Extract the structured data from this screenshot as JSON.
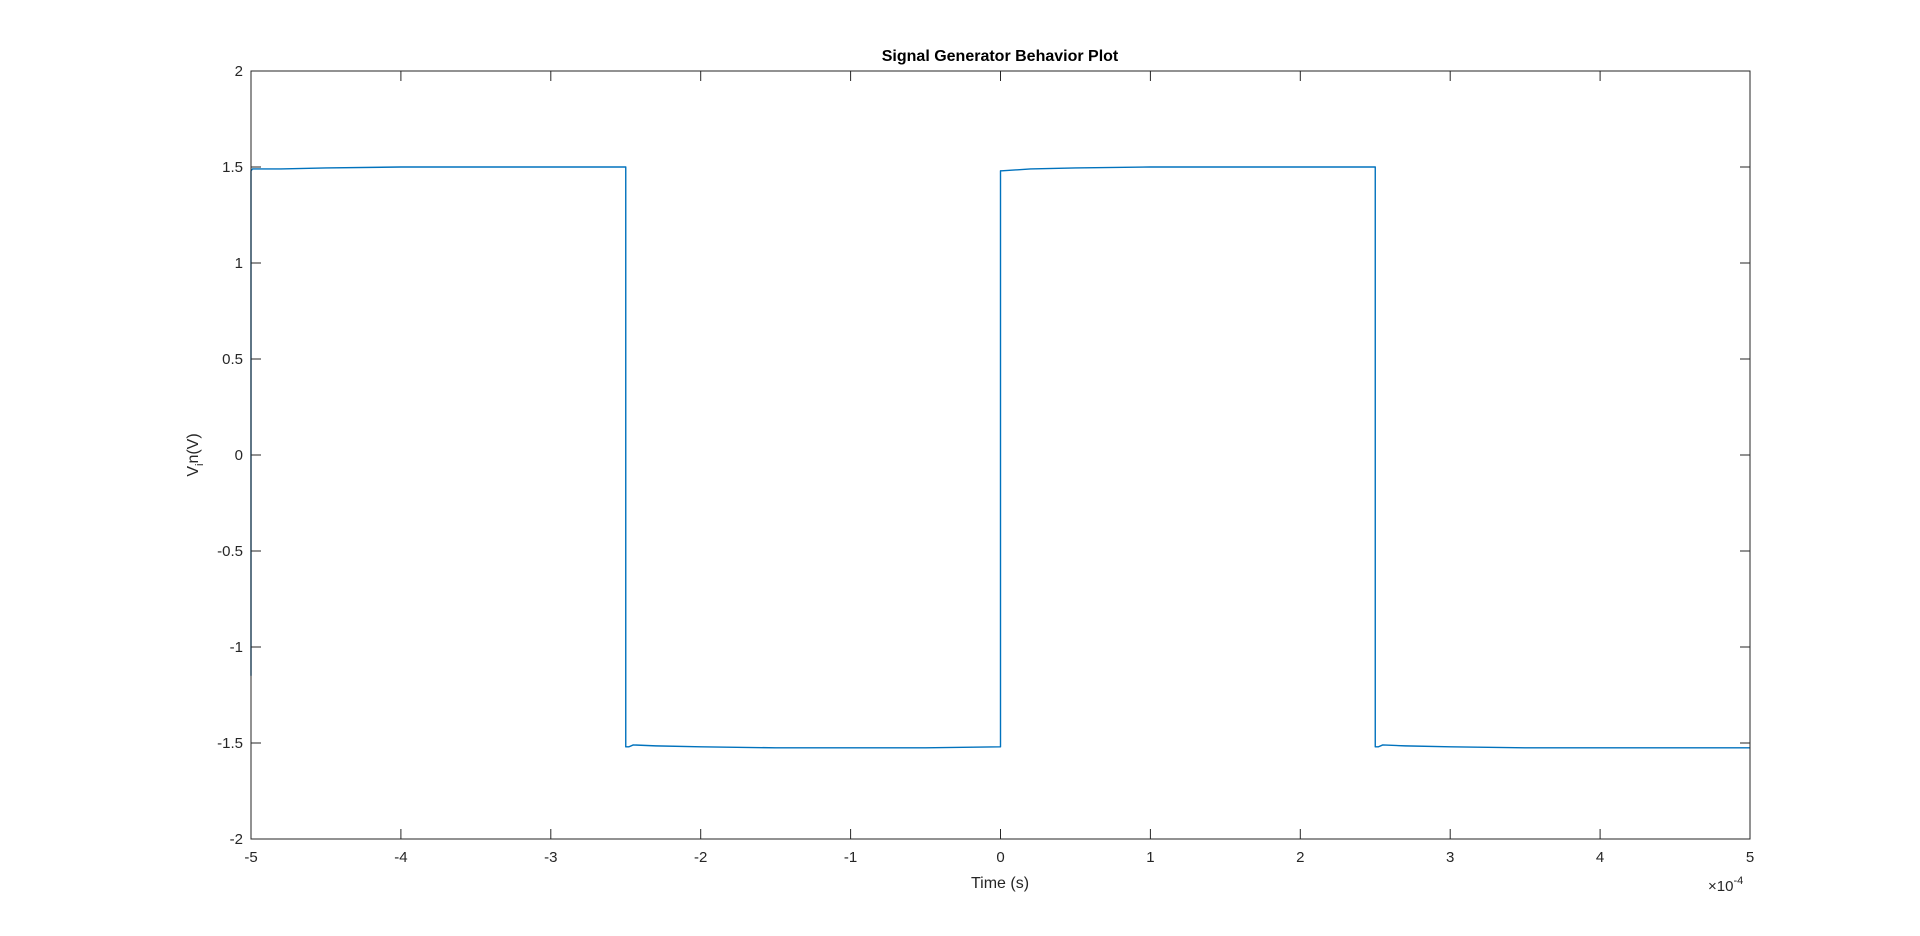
{
  "chart_data": {
    "type": "line",
    "title": "Signal Generator Behavior Plot",
    "xlabel": "Time (s)",
    "ylabel": "V_in(V)",
    "xlim": [
      -0.0005,
      0.0005
    ],
    "ylim": [
      -2,
      2
    ],
    "x_exponent_label": "×10",
    "x_exponent_power": "-4",
    "x_ticks": [
      -5,
      -4,
      -3,
      -2,
      -1,
      0,
      1,
      2,
      3,
      4,
      5
    ],
    "x_tick_labels": [
      "-5",
      "-4",
      "-3",
      "-2",
      "-1",
      "0",
      "1",
      "2",
      "3",
      "4",
      "5"
    ],
    "y_ticks": [
      -2,
      -1.5,
      -1,
      -0.5,
      0,
      0.5,
      1,
      1.5,
      2
    ],
    "y_tick_labels": [
      "-2",
      "-1.5",
      "-1",
      "-0.5",
      "0",
      "0.5",
      "1",
      "1.5",
      "2"
    ],
    "grid": false,
    "line_color": "#0072BD",
    "series": [
      {
        "x": [
          -0.0005,
          -0.0005,
          -0.000499,
          -0.00048,
          -0.00045,
          -0.0004,
          -0.00035,
          -0.0003,
          -0.00026,
          -0.00025,
          -0.00025,
          -0.000248,
          -0.000245,
          -0.00023,
          -0.0002,
          -0.00015,
          -0.0001,
          -5e-05,
          0.0,
          0.0,
          1e-06,
          2e-05,
          5e-05,
          0.0001,
          0.00015,
          0.0002,
          0.00024,
          0.00025,
          0.00025,
          0.000252,
          0.000255,
          0.00027,
          0.0003,
          0.00035,
          0.0004,
          0.00045,
          0.0005
        ],
        "y": [
          -1.15,
          1.48,
          1.49,
          1.49,
          1.495,
          1.5,
          1.5,
          1.5,
          1.5,
          1.5,
          -1.52,
          -1.52,
          -1.51,
          -1.515,
          -1.52,
          -1.525,
          -1.525,
          -1.525,
          -1.52,
          1.48,
          1.48,
          1.49,
          1.495,
          1.5,
          1.5,
          1.5,
          1.5,
          1.5,
          -1.52,
          -1.52,
          -1.51,
          -1.515,
          -1.52,
          -1.525,
          -1.525,
          -1.525,
          -1.525
        ]
      }
    ]
  }
}
